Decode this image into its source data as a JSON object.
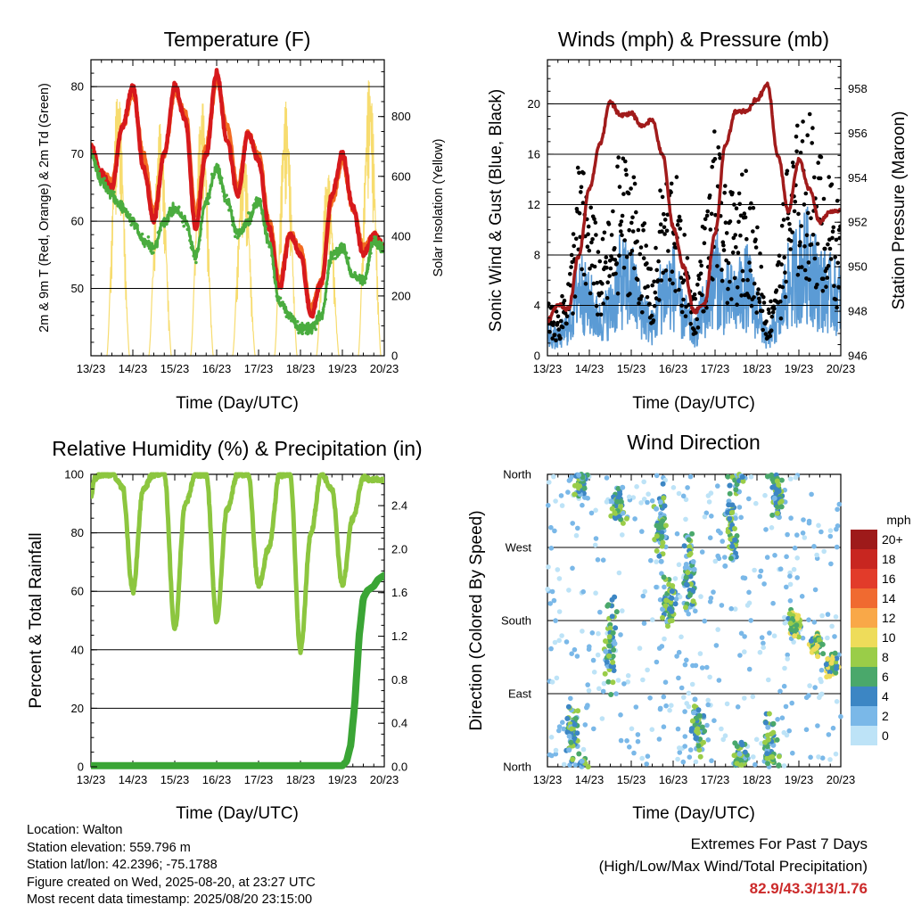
{
  "colors": {
    "temp2m": "#d7191c",
    "temp9m": "#f26b21",
    "dewpoint": "#4aac3f",
    "solar": "#f7dc6f",
    "gust": "#000000",
    "wind": "#5b9bd5",
    "pressure": "#a11b1b",
    "rh": "#8cc63f",
    "precip": "#3aa535",
    "extremes": "#cc2a2a"
  },
  "x_ticks": [
    "13/23",
    "14/23",
    "15/23",
    "16/23",
    "17/23",
    "18/23",
    "19/23",
    "20/23"
  ],
  "x_label": "Time (Day/UTC)",
  "charts": [
    {
      "id": "temperature",
      "type": "line",
      "title": "Temperature (F)",
      "xlabel": "Time (Day/UTC)",
      "ylabel": "2m & 9m T (Red, Orange) & 2m Td (Green)",
      "ylabel_right": "Solar Insolation (Yellow)",
      "ylim": [
        40,
        84
      ],
      "yticks": [
        50,
        60,
        70,
        80
      ],
      "ylim_right": [
        0,
        990
      ],
      "yticks_right": [
        0,
        200,
        400,
        600,
        800
      ],
      "x": [
        0,
        0.25,
        0.5,
        0.75,
        1.0,
        1.25,
        1.5,
        1.75,
        2.0,
        2.25,
        2.5,
        2.75,
        3.0,
        3.25,
        3.5,
        3.75,
        4.0,
        4.25,
        4.5,
        4.75,
        5.0,
        5.25,
        5.5,
        5.75,
        6.0,
        6.25,
        6.5,
        6.75,
        7.0
      ],
      "series": [
        {
          "name": "2m T",
          "values": [
            71,
            67,
            65,
            74,
            80,
            68,
            60,
            70,
            80,
            75,
            59,
            70,
            82,
            72,
            64,
            73,
            69,
            59,
            50,
            58,
            55,
            46,
            51,
            64,
            70,
            62,
            55,
            58,
            56
          ]
        },
        {
          "name": "9m T",
          "values": [
            71,
            67,
            66,
            74,
            79,
            70,
            61,
            70,
            79,
            76,
            61,
            71,
            81,
            74,
            65,
            73,
            70,
            60,
            51,
            58,
            56,
            47,
            51,
            63,
            69,
            62,
            56,
            58,
            56
          ]
        },
        {
          "name": "2m Td",
          "values": [
            70,
            66,
            64,
            62,
            60,
            57,
            56,
            60,
            62,
            60,
            55,
            63,
            68,
            63,
            58,
            60,
            63,
            57,
            48,
            46,
            44,
            44,
            46,
            55,
            56,
            52,
            51,
            57,
            56
          ]
        }
      ],
      "solar": [
        {
          "day": 0,
          "peak": 900
        },
        {
          "day": 1,
          "peak": 780
        },
        {
          "day": 2,
          "peak": 860
        },
        {
          "day": 3,
          "peak": 700
        },
        {
          "day": 4,
          "peak": 850
        },
        {
          "day": 5,
          "peak": 620
        },
        {
          "day": 6,
          "peak": 940
        }
      ]
    },
    {
      "id": "winds",
      "type": "scatter",
      "title": "Winds (mph) & Pressure (mb)",
      "xlabel": "Time (Day/UTC)",
      "ylabel": "Sonic Wind & Gust (Blue, Black)",
      "ylabel_right": "Station Pressure (Maroon)",
      "ylim": [
        0,
        23.5
      ],
      "yticks": [
        0,
        4,
        8,
        12,
        16,
        20
      ],
      "ylim_right": [
        946,
        959.3
      ],
      "yticks_right": [
        946,
        948,
        950,
        952,
        954,
        956,
        958
      ],
      "pressure": {
        "x": [
          0,
          0.25,
          0.5,
          0.75,
          1.0,
          1.25,
          1.5,
          1.75,
          2.0,
          2.25,
          2.5,
          2.75,
          3.0,
          3.25,
          3.5,
          3.75,
          4.0,
          4.25,
          4.5,
          4.75,
          5.0,
          5.25,
          5.5,
          5.75,
          6.0,
          6.25,
          6.5,
          6.75,
          7.0
        ],
        "values": [
          947.6,
          948.3,
          948.1,
          950.5,
          953.5,
          955.5,
          957.4,
          956.8,
          956.9,
          956.3,
          956.6,
          955.0,
          951.8,
          950.0,
          948.0,
          948.3,
          951.5,
          955.5,
          957.0,
          957.0,
          957.5,
          958.2,
          955.0,
          952.5,
          954.8,
          953.5,
          952.0,
          952.5,
          952.5
        ]
      },
      "wind_mean": [
        1.8,
        1.5,
        2.5,
        6.0,
        4.5,
        3.0,
        4.0,
        6.5,
        6.0,
        4.0,
        2.5,
        5.5,
        6.0,
        3.5,
        2.0,
        4.0,
        7.0,
        5.0,
        5.0,
        6.0,
        4.0,
        1.5,
        3.0,
        6.0,
        7.5,
        8.0,
        6.0,
        5.5,
        5.0
      ],
      "gust_mean": [
        3.0,
        2.5,
        4.5,
        10.5,
        9.0,
        6.0,
        7.5,
        11.0,
        10.5,
        7.5,
        4.5,
        9.5,
        10.5,
        6.5,
        3.5,
        7.5,
        12.0,
        9.0,
        8.5,
        10.5,
        7.0,
        2.5,
        5.5,
        10.5,
        12.5,
        13.0,
        11.0,
        9.5,
        8.0
      ]
    },
    {
      "id": "rh_precip",
      "type": "line",
      "title": "Relative Humidity (%) & Precipitation (in)",
      "xlabel": "Time (Day/UTC)",
      "ylabel": "Percent & Total Rainfall",
      "ylim": [
        0,
        100
      ],
      "yticks": [
        0,
        20,
        40,
        60,
        80,
        100
      ],
      "ylim_right": [
        0,
        2.6875
      ],
      "yticks_right": [
        "0.0",
        "0.4",
        "0.8",
        "1.2",
        "1.6",
        "2.0",
        "2.4"
      ],
      "x": [
        0,
        0.1,
        0.2,
        0.5,
        0.75,
        1.0,
        1.25,
        1.5,
        1.75,
        2.0,
        2.25,
        2.5,
        2.75,
        3.0,
        3.25,
        3.5,
        3.75,
        4.0,
        4.25,
        4.5,
        4.75,
        5.0,
        5.25,
        5.5,
        5.75,
        6.0,
        6.25,
        6.5,
        6.75,
        7.0
      ],
      "rh": [
        93,
        99,
        100,
        100,
        96,
        60,
        95,
        100,
        100,
        47,
        90,
        100,
        100,
        50,
        88,
        100,
        100,
        62,
        75,
        100,
        100,
        40,
        80,
        100,
        95,
        62,
        85,
        99,
        98,
        98
      ],
      "precip_x": [
        0,
        5.5,
        6.0,
        6.1,
        6.2,
        6.3,
        6.4,
        6.5,
        6.6,
        6.75,
        6.85,
        7.0
      ],
      "precip": [
        0.01,
        0.01,
        0.01,
        0.05,
        0.2,
        0.6,
        1.2,
        1.55,
        1.62,
        1.66,
        1.72,
        1.76
      ]
    },
    {
      "id": "wind_direction",
      "type": "scatter",
      "title": "Wind Direction",
      "xlabel": "Time (Day/UTC)",
      "ylabel": "Direction (Colored By Speed)",
      "y_categories": [
        "North",
        "East",
        "South",
        "West",
        "North"
      ],
      "legend_title": "mph",
      "legend_labels": [
        "20+",
        "18",
        "16",
        "14",
        "12",
        "10",
        "8",
        "6",
        "4",
        "2",
        "0"
      ],
      "legend_colors": [
        "#9e1a1a",
        "#c82620",
        "#e23b2a",
        "#f06a30",
        "#f9a848",
        "#eedc5a",
        "#9acd48",
        "#4aa86b",
        "#3c86c4",
        "#7ab8e8",
        "#bde3f7"
      ],
      "clusters": [
        {
          "center": 0.6,
          "dir": 40,
          "spread": 40
        },
        {
          "center": 0.8,
          "dir": 350,
          "spread": 25
        },
        {
          "center": 1.5,
          "dir": 160,
          "spread": 70
        },
        {
          "center": 1.7,
          "dir": 320,
          "spread": 30
        },
        {
          "center": 2.7,
          "dir": 300,
          "spread": 60
        },
        {
          "center": 2.9,
          "dir": 200,
          "spread": 40
        },
        {
          "center": 3.4,
          "dir": 240,
          "spread": 60
        },
        {
          "center": 3.6,
          "dir": 50,
          "spread": 40
        },
        {
          "center": 4.4,
          "dir": 300,
          "spread": 60
        },
        {
          "center": 4.6,
          "dir": 10,
          "spread": 30
        },
        {
          "center": 5.3,
          "dir": 30,
          "spread": 40
        },
        {
          "center": 5.5,
          "dir": 330,
          "spread": 40
        },
        {
          "center": 5.9,
          "dir": 175,
          "spread": 20
        },
        {
          "center": 6.4,
          "dir": 150,
          "spread": 15
        },
        {
          "center": 6.8,
          "dir": 125,
          "spread": 15
        }
      ]
    }
  ],
  "info": {
    "location": "Location: Walton",
    "elevation": "Station elevation: 559.796 m",
    "latlon": "Station lat/lon: 42.2396; -75.1788",
    "created": "Figure created on Wed, 2025-08-20, at 23:27 UTC",
    "timestamp": "Most recent data timestamp: 2025/08/20 23:15:00"
  },
  "extremes": {
    "line1": "Extremes For Past 7 Days",
    "line2": "(High/Low/Max Wind/Total Precipitation)",
    "values": "82.9/43.3/13/1.76"
  }
}
